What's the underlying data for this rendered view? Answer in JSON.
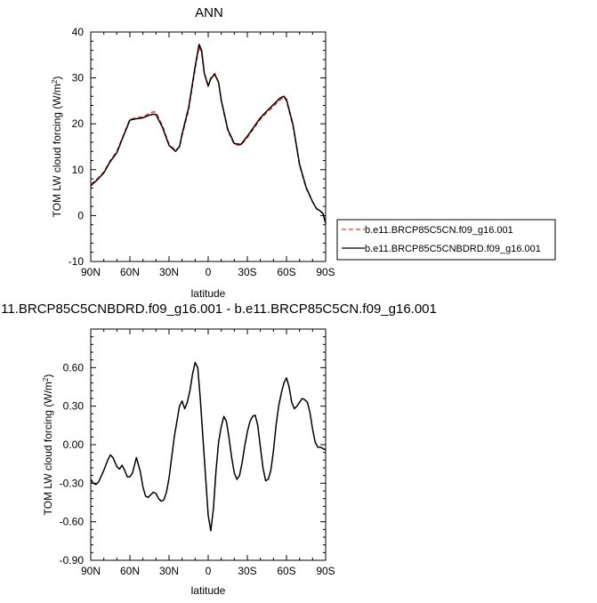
{
  "chart_data": [
    {
      "type": "line",
      "title": "ANN",
      "xlabel": "latitude",
      "ylabel": "TOM LW cloud forcing (W/m",
      "ylabel_sup": "2",
      "ylabel_close": ")",
      "xlim": [
        90,
        -90
      ],
      "ylim": [
        -10,
        40
      ],
      "x_ticks": [
        90,
        60,
        30,
        0,
        -30,
        -60,
        -90
      ],
      "x_tick_labels": [
        "90N",
        "60N",
        "30N",
        "0",
        "30S",
        "60S",
        "90S"
      ],
      "y_ticks": [
        -10,
        0,
        10,
        20,
        30,
        40
      ],
      "y_tick_labels": [
        "-10",
        "0",
        "10",
        "20",
        "30",
        "40"
      ],
      "legend_position": "outside-right-bottom",
      "series": [
        {
          "name": "b.e11.BRCP85C5CN.f09_g16.001",
          "color": "#e8312f",
          "dash": "dashed",
          "x": [
            90,
            85,
            80,
            75,
            70,
            65,
            60,
            55,
            50,
            45,
            42,
            40,
            35,
            30,
            25,
            22,
            20,
            15,
            10,
            7,
            5,
            3,
            0,
            -2,
            -5,
            -8,
            -10,
            -15,
            -20,
            -25,
            -30,
            -35,
            -40,
            -45,
            -50,
            -55,
            -58,
            -60,
            -65,
            -70,
            -75,
            -80,
            -83,
            -85,
            -88,
            -90
          ],
          "values": [
            6.8,
            8.0,
            9.5,
            12.0,
            14.0,
            17.5,
            21.0,
            21.3,
            21.5,
            22.3,
            22.6,
            22.5,
            19.5,
            15.5,
            14.2,
            15.0,
            17.5,
            23.0,
            32.0,
            36.8,
            35.5,
            31.0,
            28.5,
            30.0,
            31.0,
            29.0,
            25.0,
            18.5,
            15.5,
            15.3,
            17.0,
            19.0,
            21.0,
            22.5,
            23.8,
            25.2,
            25.8,
            25.0,
            19.5,
            11.0,
            6.0,
            3.0,
            1.5,
            1.2,
            0.5,
            -1.6
          ]
        },
        {
          "name": "b.e11.BRCP85C5CNBDRD.f09_g16.001",
          "color": "#000000",
          "dash": "solid",
          "x": [
            90,
            85,
            80,
            75,
            70,
            65,
            60,
            55,
            50,
            45,
            42,
            40,
            35,
            30,
            25,
            22,
            20,
            15,
            10,
            7,
            5,
            3,
            0,
            -2,
            -5,
            -8,
            -10,
            -15,
            -20,
            -25,
            -30,
            -35,
            -40,
            -45,
            -50,
            -55,
            -58,
            -60,
            -65,
            -70,
            -75,
            -80,
            -83,
            -85,
            -88,
            -90
          ],
          "values": [
            6.5,
            7.8,
            9.3,
            11.8,
            13.7,
            17.3,
            20.8,
            21.1,
            21.3,
            21.9,
            22.1,
            22.0,
            19.2,
            15.3,
            14.0,
            15.0,
            17.8,
            23.5,
            32.5,
            37.3,
            36.0,
            31.0,
            28.2,
            29.8,
            30.8,
            29.0,
            25.2,
            18.8,
            15.7,
            15.5,
            17.3,
            19.3,
            21.3,
            22.8,
            24.2,
            25.6,
            26.0,
            25.3,
            19.8,
            11.2,
            6.2,
            3.0,
            1.5,
            1.2,
            0.4,
            -1.7
          ]
        }
      ]
    },
    {
      "type": "line",
      "title": "11.BRCP85C5CNBDRD.f09_g16.001 - b.e11.BRCP85C5CN.f09_g16.001",
      "xlabel": "latitude",
      "ylabel": "TOM LW cloud forcing (W/m",
      "ylabel_sup": "2",
      "ylabel_close": ")",
      "xlim": [
        90,
        -90
      ],
      "ylim": [
        -0.9,
        0.9
      ],
      "x_ticks": [
        90,
        60,
        30,
        0,
        -30,
        -60,
        -90
      ],
      "x_tick_labels": [
        "90N",
        "60N",
        "30N",
        "0",
        "30S",
        "60S",
        "90S"
      ],
      "y_ticks": [
        -0.9,
        -0.6,
        -0.3,
        0.0,
        0.3,
        0.6
      ],
      "y_tick_labels": [
        "-0.90",
        "-0.60",
        "-0.30",
        "0.00",
        "0.30",
        "0.60"
      ],
      "series": [
        {
          "color": "#000000",
          "dash": "solid",
          "x": [
            90,
            88,
            86,
            84,
            80,
            77,
            75,
            73,
            70,
            68,
            66,
            64,
            62,
            60,
            58,
            55,
            52,
            50,
            48,
            46,
            44,
            42,
            40,
            38,
            36,
            34,
            32,
            30,
            28,
            26,
            24,
            22,
            20,
            18,
            16,
            14,
            12,
            10,
            8,
            6,
            4,
            2,
            0,
            -2,
            -4,
            -6,
            -8,
            -10,
            -12,
            -14,
            -16,
            -18,
            -20,
            -22,
            -24,
            -26,
            -28,
            -30,
            -32,
            -34,
            -36,
            -38,
            -40,
            -42,
            -44,
            -46,
            -48,
            -50,
            -52,
            -54,
            -56,
            -58,
            -60,
            -62,
            -64,
            -66,
            -68,
            -70,
            -72,
            -74,
            -76,
            -78,
            -80,
            -82,
            -84,
            -86,
            -88,
            -90
          ],
          "values": [
            -0.27,
            -0.3,
            -0.31,
            -0.29,
            -0.2,
            -0.12,
            -0.08,
            -0.1,
            -0.17,
            -0.19,
            -0.16,
            -0.2,
            -0.25,
            -0.25,
            -0.22,
            -0.1,
            -0.21,
            -0.33,
            -0.4,
            -0.41,
            -0.39,
            -0.37,
            -0.38,
            -0.42,
            -0.44,
            -0.43,
            -0.37,
            -0.26,
            -0.1,
            0.06,
            0.18,
            0.3,
            0.34,
            0.28,
            0.33,
            0.42,
            0.55,
            0.64,
            0.6,
            0.35,
            0.05,
            -0.25,
            -0.55,
            -0.67,
            -0.5,
            -0.2,
            0.02,
            0.14,
            0.22,
            0.18,
            0.05,
            -0.1,
            -0.22,
            -0.27,
            -0.24,
            -0.14,
            -0.01,
            0.1,
            0.18,
            0.22,
            0.23,
            0.15,
            -0.02,
            -0.18,
            -0.28,
            -0.27,
            -0.2,
            -0.05,
            0.15,
            0.3,
            0.4,
            0.48,
            0.52,
            0.45,
            0.33,
            0.28,
            0.3,
            0.33,
            0.36,
            0.35,
            0.33,
            0.25,
            0.12,
            0.02,
            -0.02,
            -0.02,
            -0.03,
            -0.04
          ]
        }
      ]
    }
  ],
  "legend_sample_color_dashed": "#e8312f",
  "legend_sample_color_solid": "#000000"
}
